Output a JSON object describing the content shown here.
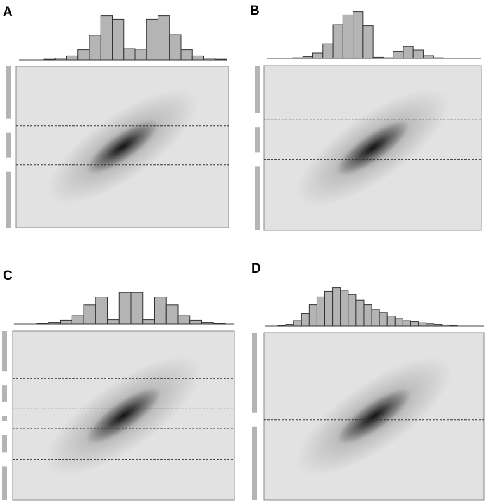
{
  "chart_data": [
    {
      "type": "histogram",
      "label": "A",
      "color": "#b4b4b4",
      "ylim": [
        0,
        100
      ],
      "values": [
        1,
        3,
        7,
        18,
        44,
        78,
        72,
        20,
        19,
        72,
        78,
        45,
        18,
        7,
        3,
        1
      ],
      "cutoffs": [
        63,
        39
      ]
    },
    {
      "type": "histogram",
      "label": "B",
      "color": "#b4b4b4",
      "ylim": [
        0,
        100
      ],
      "values": [
        1,
        3,
        10,
        26,
        60,
        77,
        83,
        58,
        2,
        1,
        12,
        21,
        15,
        5,
        1
      ],
      "cutoffs": [
        67,
        43
      ]
    },
    {
      "type": "histogram",
      "label": "C",
      "color": "#b4b4b4",
      "ylim": [
        0,
        100
      ],
      "values": [
        1,
        3,
        7,
        15,
        34,
        48,
        8,
        56,
        56,
        8,
        48,
        34,
        15,
        7,
        3,
        1
      ],
      "cutoffs": [
        72,
        54,
        42.5,
        24
      ]
    },
    {
      "type": "histogram",
      "label": "D",
      "color": "#b4b4b4",
      "ylim": [
        0,
        100
      ],
      "values": [
        1,
        3,
        10,
        22,
        38,
        52,
        62,
        68,
        64,
        56,
        46,
        38,
        30,
        24,
        18,
        14,
        10,
        8,
        6,
        4,
        3,
        2,
        1
      ],
      "cutoffs": [
        48
      ]
    }
  ]
}
